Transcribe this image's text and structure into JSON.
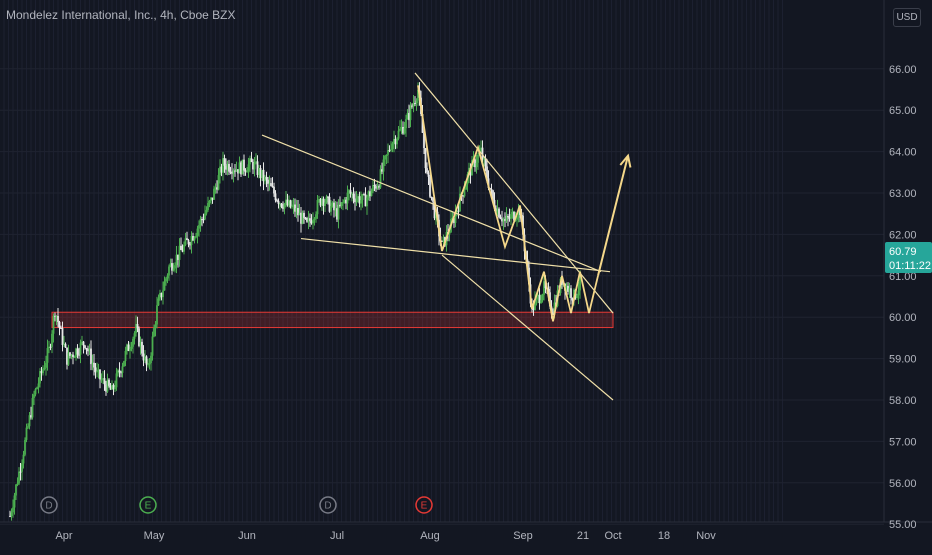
{
  "title": "Mondelez International, Inc., 4h, Cboe BZX",
  "currency": "USD",
  "last_price": "60.79",
  "countdown": "01:11:22",
  "colors": {
    "background": "#131722",
    "up": "#4caf50",
    "down": "#e8e8e8",
    "price_label": "#26a69a",
    "zone_border": "#e53935",
    "drawing": "#f0e0a8",
    "projection": "#f5d88a"
  },
  "chart_data": {
    "type": "candlestick",
    "interval": "4h",
    "ylim": [
      54.6,
      66.4
    ],
    "y_ticks": [
      "55.00",
      "56.00",
      "57.00",
      "58.00",
      "59.00",
      "60.00",
      "61.00",
      "62.00",
      "63.00",
      "64.00",
      "65.00",
      "66.00"
    ],
    "x_ticks": [
      {
        "label": "Apr",
        "date": "2024-04-01"
      },
      {
        "label": "May",
        "date": "2024-05-01"
      },
      {
        "label": "Jun",
        "date": "2024-06-01"
      },
      {
        "label": "Jul",
        "date": "2024-07-01"
      },
      {
        "label": "Aug",
        "date": "2024-08-01"
      },
      {
        "label": "Sep",
        "date": "2024-09-01"
      },
      {
        "label": "21",
        "date": "2024-09-21"
      },
      {
        "label": "Oct",
        "date": "2024-10-01"
      },
      {
        "label": "18",
        "date": "2024-10-18"
      },
      {
        "label": "Nov",
        "date": "2024-11-01"
      }
    ],
    "event_markers": [
      {
        "letter": "D",
        "date": "2024-03-27",
        "color": "#787b86"
      },
      {
        "letter": "E",
        "date": "2024-04-29",
        "color": "#4caf50"
      },
      {
        "letter": "D",
        "date": "2024-06-28",
        "color": "#787b86"
      },
      {
        "letter": "E",
        "date": "2024-07-30",
        "color": "#e53935"
      }
    ],
    "price_path": [
      [
        "2024-03-14",
        55.2
      ],
      [
        "2024-03-18",
        56.6
      ],
      [
        "2024-03-22",
        58.1
      ],
      [
        "2024-03-27",
        59.2
      ],
      [
        "2024-03-29",
        60.2
      ],
      [
        "2024-04-02",
        59.0
      ],
      [
        "2024-04-08",
        59.4
      ],
      [
        "2024-04-12",
        58.6
      ],
      [
        "2024-04-17",
        58.2
      ],
      [
        "2024-04-22",
        59.2
      ],
      [
        "2024-04-25",
        59.7
      ],
      [
        "2024-04-29",
        58.7
      ],
      [
        "2024-05-02",
        60.2
      ],
      [
        "2024-05-06",
        61.2
      ],
      [
        "2024-05-10",
        61.6
      ],
      [
        "2024-05-15",
        62.1
      ],
      [
        "2024-05-20",
        62.8
      ],
      [
        "2024-05-24",
        63.7
      ],
      [
        "2024-05-29",
        63.6
      ],
      [
        "2024-06-03",
        63.7
      ],
      [
        "2024-06-07",
        63.3
      ],
      [
        "2024-06-12",
        62.8
      ],
      [
        "2024-06-17",
        62.6
      ],
      [
        "2024-06-21",
        62.2
      ],
      [
        "2024-06-26",
        62.9
      ],
      [
        "2024-07-01",
        62.5
      ],
      [
        "2024-07-05",
        63.0
      ],
      [
        "2024-07-10",
        62.8
      ],
      [
        "2024-07-15",
        63.3
      ],
      [
        "2024-07-19",
        64.2
      ],
      [
        "2024-07-24",
        64.7
      ],
      [
        "2024-07-28",
        65.5
      ],
      [
        "2024-07-31",
        63.4
      ],
      [
        "2024-08-05",
        61.7
      ],
      [
        "2024-08-09",
        62.4
      ],
      [
        "2024-08-14",
        63.5
      ],
      [
        "2024-08-18",
        64.0
      ],
      [
        "2024-08-22",
        62.8
      ],
      [
        "2024-08-26",
        62.3
      ],
      [
        "2024-08-31",
        62.6
      ],
      [
        "2024-09-04",
        60.2
      ],
      [
        "2024-09-08",
        60.7
      ],
      [
        "2024-09-11",
        60.2
      ],
      [
        "2024-09-14",
        60.9
      ],
      [
        "2024-09-18",
        60.5
      ],
      [
        "2024-09-20",
        60.8
      ]
    ],
    "support_zone": {
      "from": "2024-03-28",
      "to": "2024-10-01",
      "low": 59.75,
      "high": 60.12
    },
    "drawings": [
      {
        "kind": "line",
        "points": [
          [
            "2024-06-06",
            64.4
          ],
          [
            "2024-09-27",
            61.1
          ]
        ]
      },
      {
        "kind": "line",
        "points": [
          [
            "2024-06-19",
            61.9
          ],
          [
            "2024-09-30",
            61.1
          ]
        ]
      },
      {
        "kind": "line",
        "points": [
          [
            "2024-07-27",
            65.9
          ],
          [
            "2024-10-01",
            60.1
          ]
        ]
      },
      {
        "kind": "line",
        "points": [
          [
            "2024-08-05",
            61.5
          ],
          [
            "2024-10-01",
            58.0
          ]
        ]
      },
      {
        "kind": "path",
        "points": [
          [
            "2024-07-28",
            65.6
          ],
          [
            "2024-08-05",
            61.6
          ],
          [
            "2024-08-17",
            64.1
          ],
          [
            "2024-08-26",
            61.7
          ],
          [
            "2024-08-31",
            62.7
          ],
          [
            "2024-09-04",
            60.2
          ],
          [
            "2024-09-08",
            61.1
          ],
          [
            "2024-09-11",
            59.9
          ],
          [
            "2024-09-14",
            61.0
          ],
          [
            "2024-09-17",
            60.1
          ],
          [
            "2024-09-20",
            61.1
          ],
          [
            "2024-09-23",
            60.1
          ],
          [
            "2024-09-26",
            61.0
          ]
        ]
      },
      {
        "kind": "arrow",
        "points": [
          [
            "2024-09-26",
            61.0
          ],
          [
            "2024-10-06",
            63.9
          ]
        ]
      }
    ]
  }
}
